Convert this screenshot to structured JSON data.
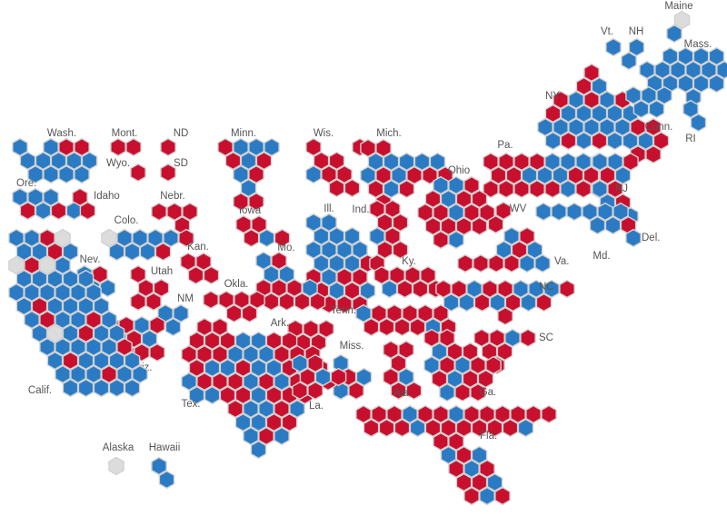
{
  "labels": [
    "Maine",
    "Vt.",
    "NH",
    "Mass.",
    "NY",
    "Conn.",
    "RI",
    "Wash.",
    "Mont.",
    "ND",
    "Minn.",
    "Wis.",
    "Mich.",
    "Wyo.",
    "SD",
    "Pa.",
    "Ohio",
    "Ore.",
    "Idaho",
    "Nebr.",
    "Iowa",
    "Ill.",
    "Ind.",
    "WV",
    "NJ",
    "Colo.",
    "Kan.",
    "Mo.",
    "Nev.",
    "Utah",
    "Ky.",
    "Va.",
    "Md.",
    "Del.",
    "NM",
    "Okla.",
    "NC",
    "Tenn.",
    "Ark.",
    "Miss.",
    "SC",
    "Ariz.",
    "Tex.",
    "La.",
    "Ala.",
    "Ga.",
    "Calif.",
    "Fla.",
    "Alaska",
    "Hawaii"
  ]
}
